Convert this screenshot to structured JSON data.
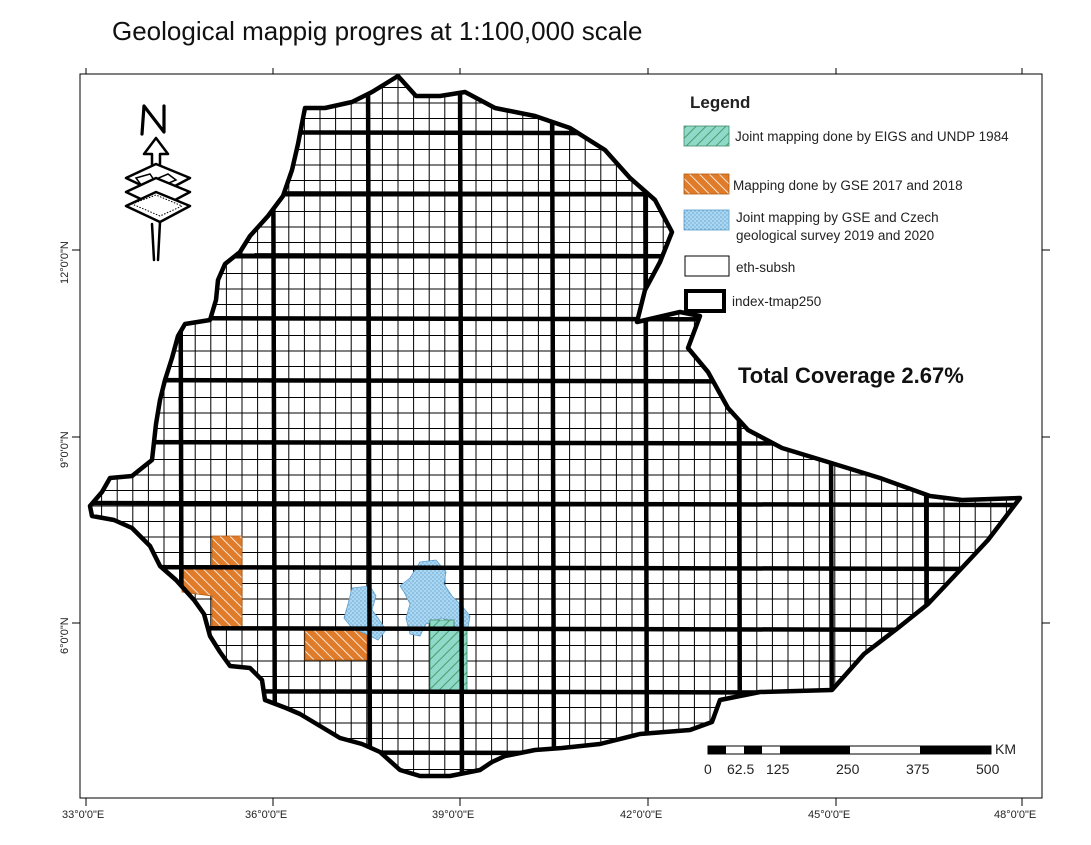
{
  "title": "Geological mappig progres at 1:100,000 scale",
  "axes": {
    "x_ticks": [
      "33°0'0\"E",
      "36°0'0\"E",
      "39°0'0\"E",
      "42°0'0\"E",
      "45°0'0\"E",
      "48°0'0\"E"
    ],
    "y_ticks": [
      "12°0'0\"N",
      "9°0'0\"N",
      "6°0'0\"N"
    ]
  },
  "legend": {
    "title": "Legend",
    "items": [
      {
        "label": "Joint mapping done by EIGS and UNDP 1984",
        "fill": "#8fd9c9",
        "hatch": "#4c9a6e"
      },
      {
        "label": "Mapping done by GSE 2017 and 2018",
        "fill": "#e07b2a",
        "hatch": "#ffffff"
      },
      {
        "label_line1": "Joint mapping by GSE and Czech",
        "label_line2": "geological survey 2019 and 2020",
        "fill": "#a8d8f5"
      },
      {
        "label": "eth-subsh"
      },
      {
        "label": "index-tmap250"
      }
    ]
  },
  "coverage_text": "Total Coverage 2.67%",
  "scale_bar": {
    "unit": "KM",
    "labels": [
      "0",
      "62.5",
      "125",
      "250",
      "375",
      "500"
    ]
  },
  "colors": {
    "undp_fill": "#8fd9c9",
    "gse_fill": "#e07b2a",
    "czech_fill": "#a8d8f5",
    "outline": "#000000"
  }
}
